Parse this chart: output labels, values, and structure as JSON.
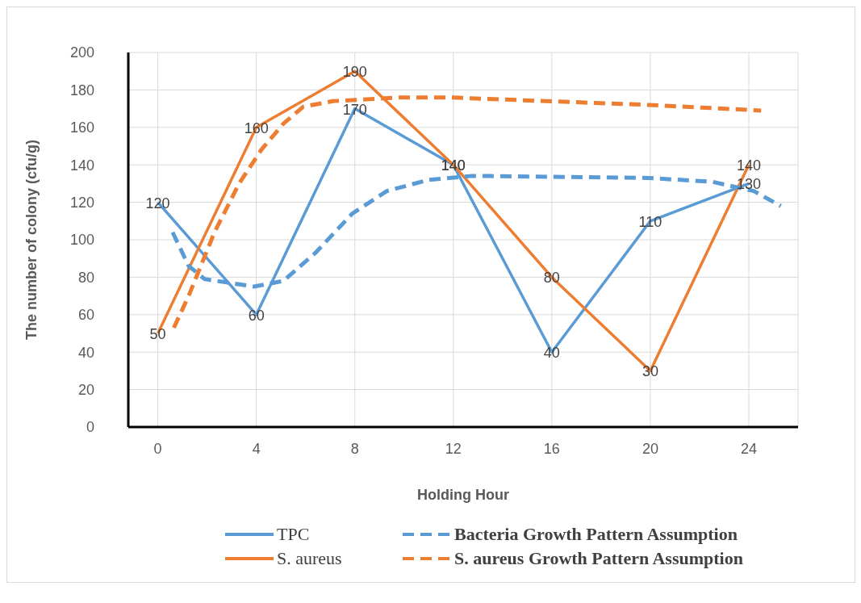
{
  "chart_data": {
    "type": "line",
    "xlabel": "Holding Hour",
    "ylabel": "The number of colony (cfu/g)",
    "x": [
      0,
      4,
      8,
      12,
      16,
      20,
      24
    ],
    "xlim": [
      -1.2,
      26
    ],
    "xticks": [
      0,
      4,
      8,
      12,
      16,
      20,
      24
    ],
    "ylim": [
      0,
      200
    ],
    "yticks": [
      0,
      20,
      40,
      60,
      80,
      100,
      120,
      140,
      160,
      180,
      200
    ],
    "grid": true,
    "legend": "bottom",
    "marker": "none",
    "series": [
      {
        "name": "TPC",
        "color": "#5b9bd5",
        "line_style": "solid",
        "values": [
          120,
          60,
          170,
          140,
          40,
          110,
          130
        ],
        "value_labels": [
          "120",
          "60",
          "170",
          "140",
          "40",
          "110",
          "130"
        ]
      },
      {
        "name": "S. aureus",
        "color": "#ed7d31",
        "line_style": "solid",
        "values": [
          50,
          160,
          190,
          140,
          80,
          30,
          140
        ],
        "value_labels": [
          "50",
          "160",
          "190",
          "140",
          "80",
          "30",
          "140"
        ]
      },
      {
        "name": "Bacteria Growth Pattern Assumption",
        "color": "#5b9bd5",
        "line_style": "dashed",
        "x": [
          0.6,
          1.25,
          1.9,
          3.9,
          5.1,
          6.4,
          7.9,
          9.3,
          11,
          12.7,
          13.5,
          19.9,
          22.5,
          24.2,
          25.3
        ],
        "values": [
          104,
          86,
          79,
          75,
          78,
          93,
          114,
          126,
          132,
          134,
          134,
          133,
          131,
          126,
          118
        ]
      },
      {
        "name": "S. aureus Growth Pattern Assumption",
        "color": "#ed7d31",
        "line_style": "dashed",
        "x": [
          0.65,
          1.25,
          2.3,
          3.3,
          4.2,
          5.1,
          5.9,
          7.1,
          9.8,
          11.8,
          19.9,
          24.5
        ],
        "values": [
          53,
          70,
          104,
          130,
          148,
          162,
          171,
          174,
          176,
          176,
          172,
          169
        ]
      }
    ]
  }
}
